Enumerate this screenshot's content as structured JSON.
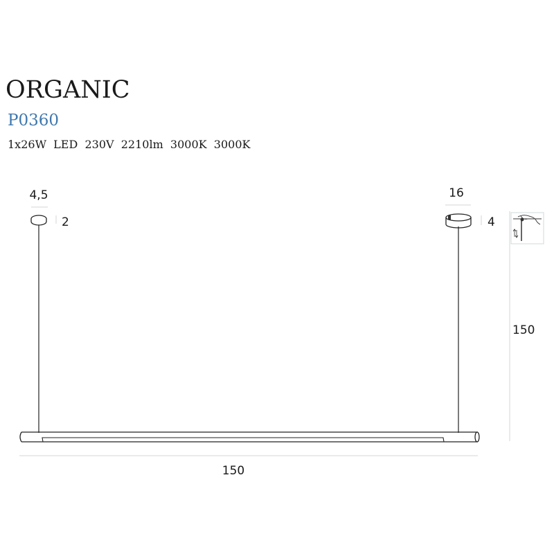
{
  "header": {
    "title": "ORGANIC",
    "code": "P0360",
    "specs": "1x26W  LED  230V  2210lm  3000K  3000K"
  },
  "dimensions": {
    "left_canopy_diameter": "4,5",
    "left_canopy_height": "2",
    "right_canopy_diameter": "16",
    "right_canopy_height": "4",
    "total_height": "150",
    "total_length": "150"
  },
  "icons": {
    "adjustable_cable": "hand-adjust-cable-icon"
  },
  "colors": {
    "code": "#3f78ad",
    "text": "#1a1a1a",
    "dimension_line": "#d6d6d6"
  }
}
